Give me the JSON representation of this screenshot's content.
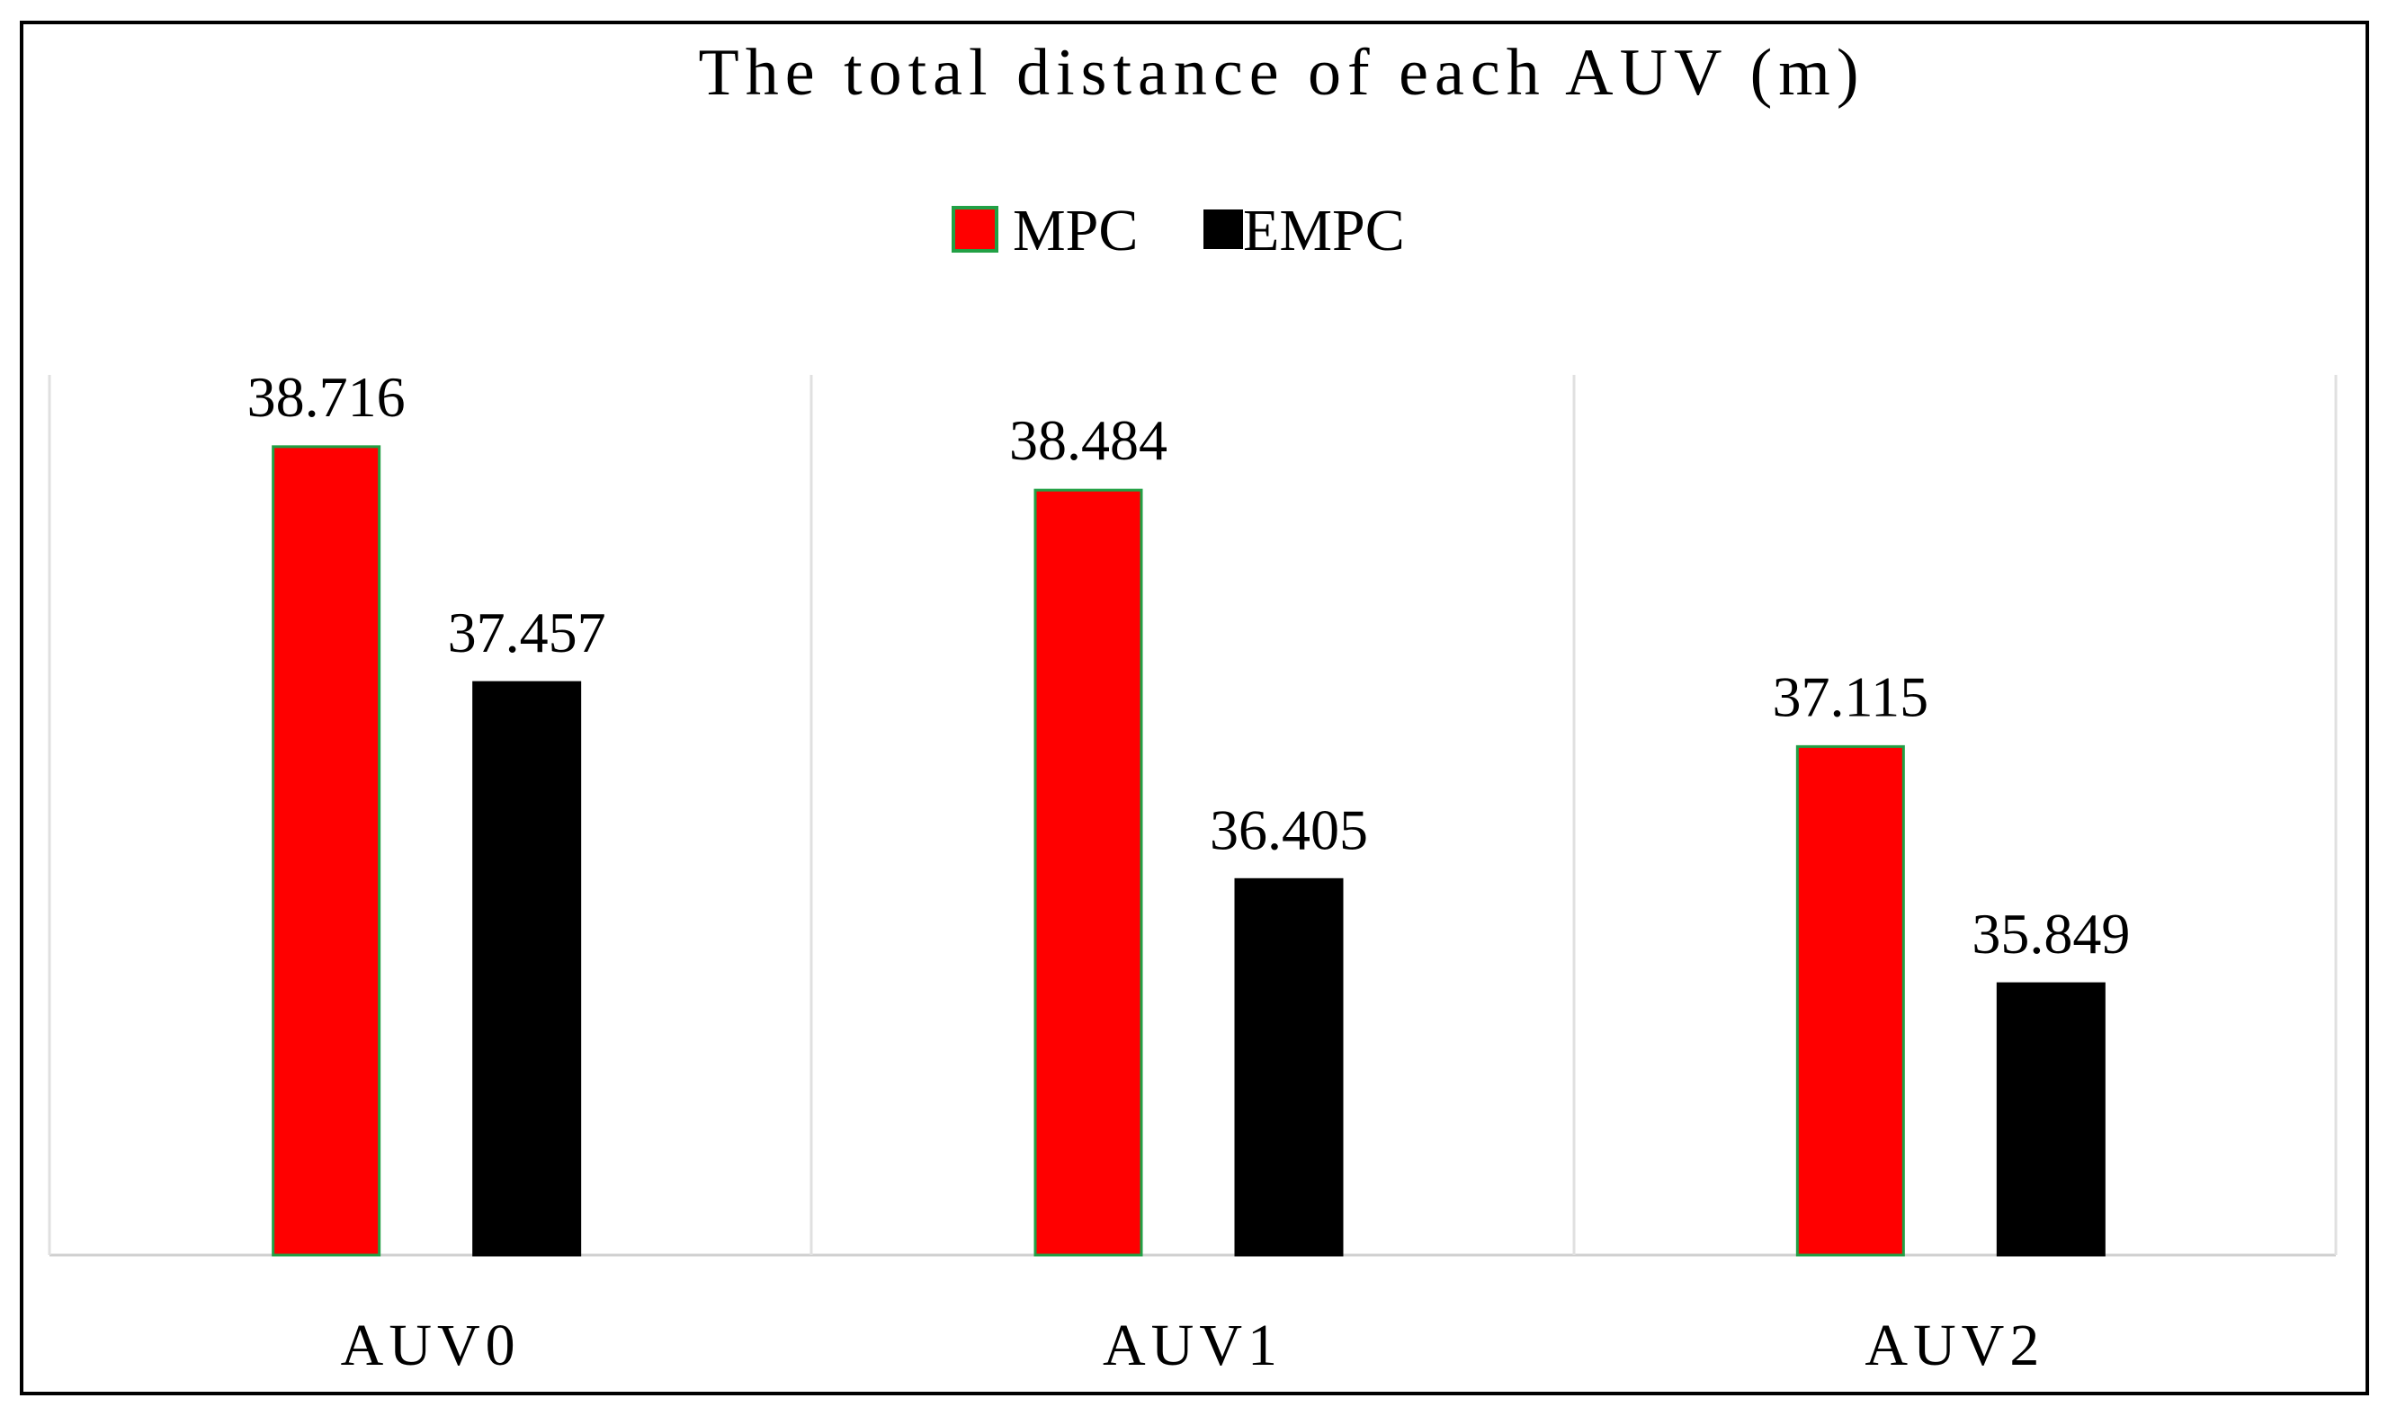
{
  "chart_data": {
    "type": "bar",
    "title": "The total distance of each AUV (m)",
    "categories": [
      "AUV0",
      "AUV1",
      "AUV2"
    ],
    "series": [
      {
        "name": "MPC",
        "values": [
          38.716,
          38.484,
          37.115
        ],
        "labels": [
          "38.716",
          "38.484",
          "37.115"
        ],
        "color": "#ff0000",
        "border_color": "#22a045"
      },
      {
        "name": "EMPC",
        "values": [
          37.457,
          36.405,
          35.849
        ],
        "labels": [
          "37.457",
          "36.405",
          "35.849"
        ],
        "color": "#000000",
        "border_color": "#000000"
      }
    ],
    "xlabel": "",
    "ylabel": "",
    "ylim": [
      34.4,
      39.2
    ],
    "grid": false,
    "legend": "top-center",
    "category_separators": true
  }
}
